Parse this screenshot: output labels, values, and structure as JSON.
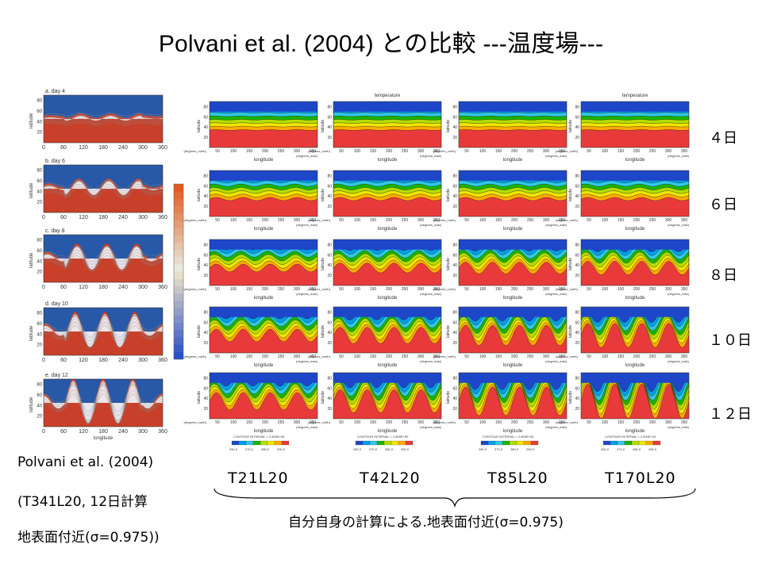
{
  "title": "Polvani et al. (2004) との比較 ---温度場---",
  "reference": {
    "panels": [
      "a. day 4",
      "b. day 6",
      "c. day 8",
      "d. day 10",
      "e. day 12"
    ],
    "yaxis_label": "latitude",
    "ytick_labels": [
      "20",
      "40",
      "60",
      "80"
    ],
    "xtick_labels": [
      "0",
      "60",
      "120",
      "180",
      "240",
      "300",
      "360"
    ],
    "xaxis_label": "longitude",
    "caption_lines": [
      "Polvani et al. (2004)",
      "(T341L20, 12日計算",
      "地表面付近(σ=0.975))"
    ]
  },
  "grid": {
    "column_title": "temperature",
    "xaxis_label": "longitude",
    "yaxis_label": "latitude",
    "xtick_labels": [
      "50",
      "100",
      "150",
      "200",
      "250",
      "300",
      "350"
    ],
    "ytick_labels": [
      "20",
      "40",
      "60",
      "80"
    ],
    "lon_unit": "(degrees_east)",
    "lat_unit": "(degrees_north)",
    "contour_text": "CONTOUR INTERVAL = 2.500E+00",
    "colorbar_ticks": [
      "260.0",
      "270.0",
      "280.0",
      "290.0"
    ]
  },
  "day_labels": [
    "４日",
    "６日",
    "８日",
    "１０日",
    "１２日"
  ],
  "resolution_labels": [
    "T21L20",
    "T42L20",
    "T85L20",
    "T170L20"
  ],
  "bottom_caption": "自分自身の計算による.地表面付近(σ=0.975)",
  "colors": {
    "cold": "#1e46c8",
    "mid": "#19b400",
    "warm": "#e83a3a",
    "ref_warm": "#c8402a",
    "ref_cold": "#2858a8"
  }
}
